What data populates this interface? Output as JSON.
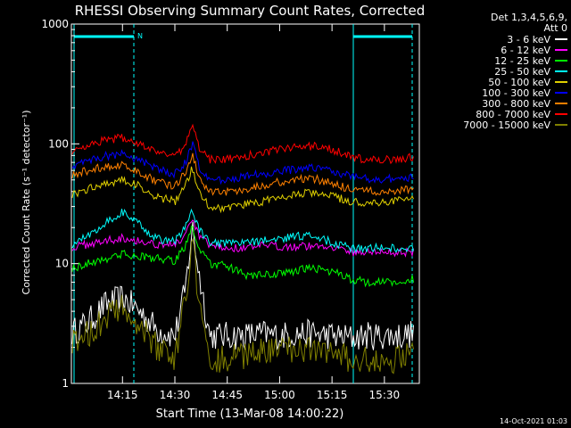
{
  "chart_data": {
    "type": "line",
    "title": "RHESSI Observing Summary Count Rates, Corrected",
    "xlabel": "Start Time (13-Mar-08 14:00:22)",
    "ylabel": "Corrected Count Rate (s⁻¹ detector⁻¹)",
    "ylog": true,
    "ylim": [
      1,
      1000
    ],
    "xlim": [
      "14:00:22",
      "15:40:00"
    ],
    "x_ticks": [
      "14:15",
      "14:30",
      "14:45",
      "15:00",
      "15:15",
      "15:30"
    ],
    "y_ticks": [
      "1",
      "10",
      "100",
      "1000"
    ],
    "annotations": {
      "detector_info": [
        "Det 1,3,4,5,6,9,",
        "Att 0"
      ],
      "night_marker": "N",
      "timestamp": "14-Oct-2021 01:03"
    },
    "colors": {
      "frame": "#ffffff",
      "background": "#000000",
      "orbit_lines": "#00ffff"
    },
    "x_times": [
      "14:00",
      "14:05",
      "14:10",
      "14:15",
      "14:20",
      "14:25",
      "14:30",
      "14:33",
      "14:35",
      "14:37",
      "14:40",
      "14:45",
      "14:50",
      "14:55",
      "15:00",
      "15:05",
      "15:10",
      "15:15",
      "15:20",
      "15:25",
      "15:30",
      "15:35",
      "15:38"
    ],
    "series": [
      {
        "name": "3 - 6 keV",
        "color": "#ffffff",
        "values": [
          2.6,
          3.2,
          4.5,
          5.2,
          4.0,
          2.8,
          2.5,
          6,
          20,
          8,
          2.5,
          2.5,
          2.5,
          2.6,
          2.5,
          2.6,
          2.6,
          2.5,
          2.4,
          2.5,
          2.5,
          2.5,
          2.6
        ]
      },
      {
        "name": "6 - 12 keV",
        "color": "#ff00ff",
        "values": [
          13.5,
          14.5,
          15.5,
          16.5,
          15.5,
          14.5,
          14.5,
          17,
          23,
          17,
          14,
          13.5,
          13.5,
          14,
          14,
          14,
          14,
          14,
          12.5,
          12.5,
          12.5,
          12.5,
          12.5
        ]
      },
      {
        "name": "12 - 25 keV",
        "color": "#00ff00",
        "values": [
          9,
          10,
          11,
          12,
          11.5,
          11,
          10.5,
          14,
          21,
          13,
          10,
          9.5,
          8,
          8,
          8.2,
          8.8,
          9.2,
          8.6,
          7.5,
          7,
          7,
          7,
          7.5
        ]
      },
      {
        "name": "25 - 50 keV",
        "color": "#00ffff",
        "values": [
          14,
          17,
          22,
          27,
          21,
          16,
          15.5,
          20,
          28,
          19,
          15,
          14.5,
          15,
          15.5,
          16,
          17,
          17,
          15,
          13.5,
          13.5,
          13.5,
          13.5,
          13.5
        ]
      },
      {
        "name": "50 - 100 keV",
        "color": "#e0d000",
        "values": [
          37,
          42,
          47,
          50,
          44,
          36,
          33,
          44,
          63,
          40,
          30,
          29,
          31,
          33,
          35,
          38,
          39,
          37,
          33,
          32,
          33,
          34,
          36
        ]
      },
      {
        "name": "100 - 300 keV",
        "color": "#0000ff",
        "values": [
          65,
          72,
          79,
          82,
          73,
          61,
          56,
          70,
          100,
          63,
          50,
          50,
          53,
          56,
          59,
          62,
          63,
          60,
          54,
          51,
          51,
          51,
          52
        ]
      },
      {
        "name": "300 - 800 keV",
        "color": "#ff8000",
        "values": [
          54,
          60,
          64,
          66,
          58,
          48,
          44,
          58,
          82,
          51,
          40,
          40,
          42,
          45,
          48,
          50,
          51,
          47,
          42,
          40,
          40,
          41,
          43
        ]
      },
      {
        "name": "800 - 7000 keV",
        "color": "#ff0000",
        "values": [
          85,
          98,
          108,
          112,
          100,
          84,
          77,
          100,
          145,
          90,
          74,
          74,
          79,
          85,
          90,
          94,
          96,
          90,
          78,
          74,
          74,
          75,
          77
        ]
      },
      {
        "name": "7000 - 15000 keV",
        "color": "#808000",
        "values": [
          2.1,
          2.6,
          3.5,
          4.2,
          3.0,
          2.0,
          1.6,
          5,
          18,
          4,
          1.6,
          1.6,
          1.7,
          1.8,
          1.9,
          1.9,
          1.9,
          1.8,
          1.6,
          1.6,
          1.6,
          1.6,
          1.7
        ]
      }
    ]
  }
}
